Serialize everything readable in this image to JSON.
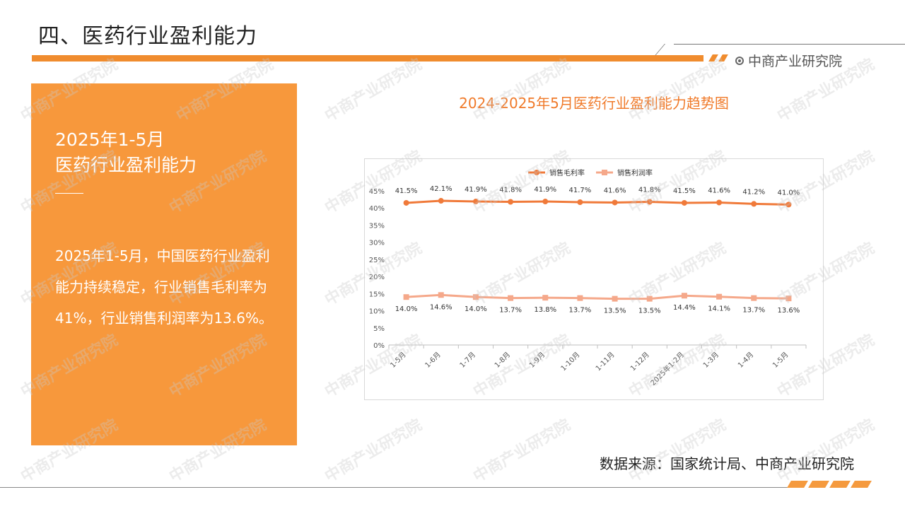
{
  "page": {
    "title": "四、医药行业盈利能力",
    "brand": "中商产业研究院",
    "source": "数据来源：国家统计局、中商产业研究院",
    "watermark": "中商产业研究院"
  },
  "panel": {
    "title_line1": "2025年1-5月",
    "title_line2": "医药行业盈利能力",
    "body": "2025年1-5月，中国医药行业盈利能力持续稳定，行业销售毛利率为41%，行业销售利润率为13.6%。"
  },
  "colors": {
    "accent": "#f08c2e",
    "panel": "#f7983c",
    "gross_margin": "#f07a3a",
    "profit_margin": "#f5a88a"
  },
  "chart_data": {
    "type": "line",
    "title": "2024-2025年5月医药行业盈利能力趋势图",
    "categories": [
      "1-5月",
      "1-6月",
      "1-7月",
      "1-8月",
      "1-9月",
      "1-10月",
      "1-11月",
      "1-12月",
      "2025年1-2月",
      "1-3月",
      "1-4月",
      "1-5月"
    ],
    "series": [
      {
        "name": "销售毛利率",
        "values": [
          41.5,
          42.1,
          41.9,
          41.8,
          41.9,
          41.7,
          41.6,
          41.8,
          41.5,
          41.6,
          41.2,
          41.0
        ],
        "labels": [
          "41.5%",
          "42.1%",
          "41.9%",
          "41.8%",
          "41.9%",
          "41.7%",
          "41.6%",
          "41.8%",
          "41.5%",
          "41.6%",
          "41.2%",
          "41.0%"
        ],
        "marker": "circle"
      },
      {
        "name": "销售利润率",
        "values": [
          14.0,
          14.6,
          14.0,
          13.7,
          13.8,
          13.7,
          13.5,
          13.5,
          14.4,
          14.1,
          13.7,
          13.6
        ],
        "labels": [
          "14.0%",
          "14.6%",
          "14.0%",
          "13.7%",
          "13.8%",
          "13.7%",
          "13.5%",
          "13.5%",
          "14.4%",
          "14.1%",
          "13.7%",
          "13.6%"
        ],
        "marker": "square"
      }
    ],
    "y_ticks": [
      "0%",
      "5%",
      "10%",
      "15%",
      "20%",
      "25%",
      "30%",
      "35%",
      "40%",
      "45%"
    ],
    "ylim": [
      0,
      45
    ],
    "legend": "top-center",
    "grid": false
  }
}
